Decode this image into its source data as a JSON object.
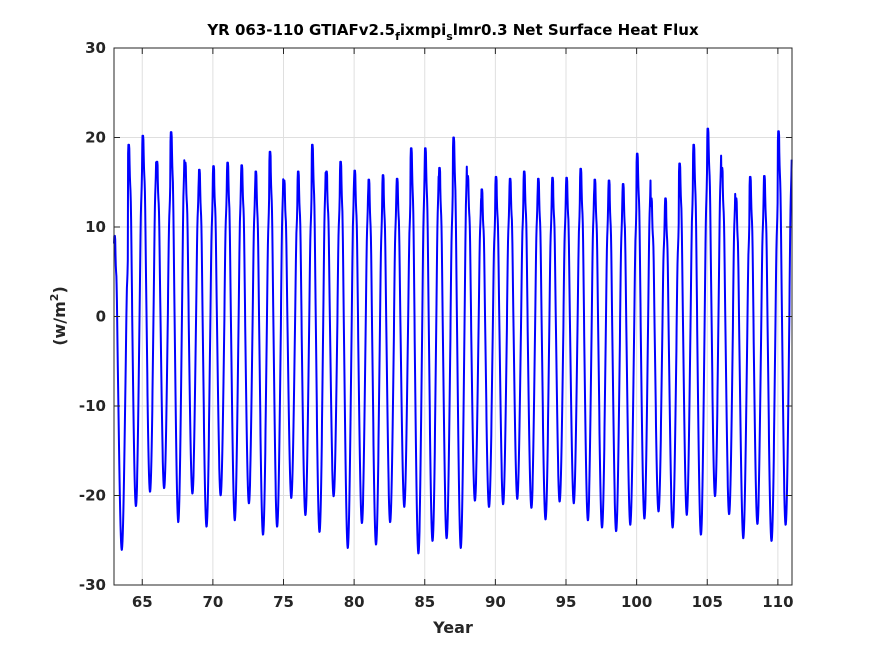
{
  "chart_data": {
    "type": "line",
    "title": {
      "prefix": "YR 063-110 GTIAFv2.5",
      "sub1": "f",
      "mid": "ixmpi",
      "sub2": "s",
      "suffix": "lmr0.3 Net Surface Heat Flux"
    },
    "xlabel": "Year",
    "ylabel": {
      "base": "(w/m",
      "sup": "2",
      "close": ")"
    },
    "xlim": [
      63,
      111
    ],
    "ylim": [
      -30,
      30
    ],
    "xticks": [
      65,
      70,
      75,
      80,
      85,
      90,
      95,
      100,
      105,
      110
    ],
    "yticks": [
      -30,
      -20,
      -10,
      0,
      10,
      20,
      30
    ],
    "grid": true,
    "series": [
      {
        "color": "#0000ff",
        "years": [
          63,
          64,
          65,
          66,
          67,
          68,
          69,
          70,
          71,
          72,
          73,
          74,
          75,
          76,
          77,
          78,
          79,
          80,
          81,
          82,
          83,
          84,
          85,
          86,
          87,
          88,
          89,
          90,
          91,
          92,
          93,
          94,
          95,
          96,
          97,
          98,
          99,
          100,
          101,
          102,
          103,
          104,
          105,
          106,
          107,
          108,
          109,
          110
        ],
        "annual_max": [
          9.0,
          19.2,
          20.2,
          17.3,
          20.6,
          17.2,
          16.4,
          16.8,
          17.2,
          16.9,
          16.2,
          18.4,
          15.2,
          16.2,
          19.2,
          16.2,
          17.3,
          16.3,
          15.3,
          15.8,
          15.4,
          18.8,
          18.8,
          16.6,
          20.0,
          15.7,
          14.2,
          15.6,
          15.4,
          16.2,
          15.4,
          15.5,
          15.5,
          16.5,
          15.3,
          15.2,
          14.8,
          18.2,
          13.2,
          13.2,
          17.1,
          19.2,
          21.0,
          16.6,
          13.2,
          15.6,
          15.7,
          20.7
        ],
        "annual_min": [
          -26.1,
          -21.2,
          -19.6,
          -19.2,
          -23.0,
          -19.8,
          -23.5,
          -20.0,
          -22.8,
          -20.9,
          -24.4,
          -23.5,
          -20.3,
          -22.2,
          -24.1,
          -20.1,
          -25.9,
          -23.1,
          -25.5,
          -23.0,
          -21.3,
          -26.5,
          -25.1,
          -24.8,
          -25.9,
          -20.6,
          -21.3,
          -21.0,
          -20.4,
          -21.4,
          -22.7,
          -20.7,
          -20.9,
          -22.8,
          -23.6,
          -24.0,
          -23.3,
          -22.6,
          -21.8,
          -23.6,
          -22.2,
          -24.4,
          -20.1,
          -22.1,
          -24.8,
          -23.2,
          -25.1,
          -23.3
        ]
      }
    ]
  }
}
